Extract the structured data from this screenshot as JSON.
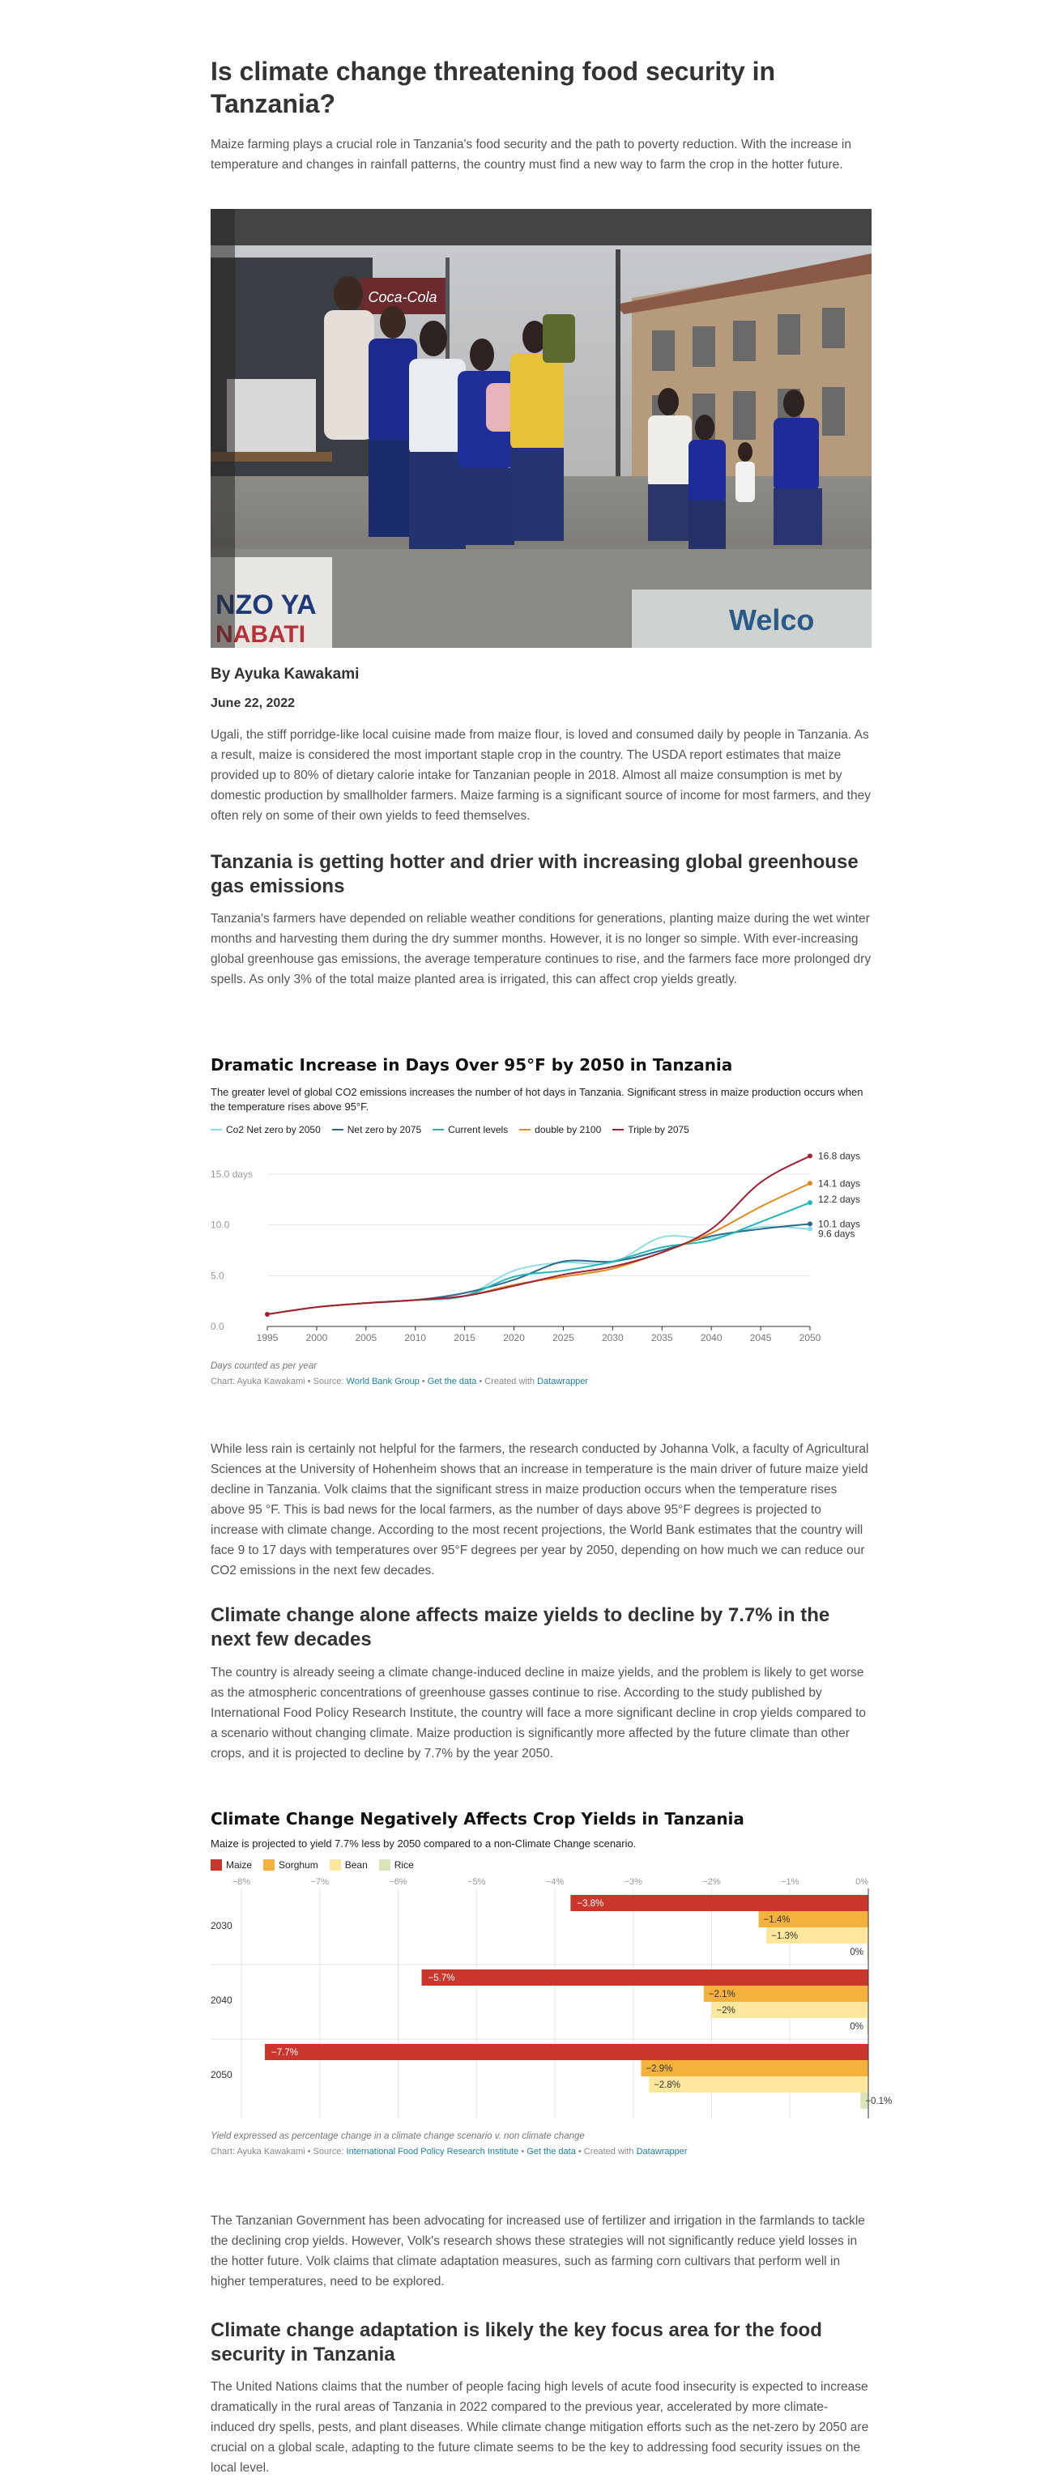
{
  "article": {
    "title": "Is climate change threatening food security in Tanzania?",
    "lede": "Maize farming plays a crucial role in Tanzania's food security and the path to poverty reduction. With the increase in temperature and changes in rainfall patterns, the country must find a new way to farm the crop in the hotter future.",
    "byline": "By Ayuka Kawakami",
    "date": "June 22, 2022",
    "p1": "Ugali, the stiff porridge-like local cuisine made from maize flour, is loved and consumed daily by people in Tanzania. As a result, maize is considered the most important staple crop in the country. The USDA report estimates that maize provided up to 80% of dietary calorie intake for Tanzanian people in 2018. Almost all maize consumption is met by domestic production by smallholder farmers. Maize farming is a significant source of income for most farmers, and they often rely on some of their own yields to feed themselves.",
    "h2a": "Tanzania is getting hotter and drier with increasing global greenhouse gas emissions",
    "p2": "Tanzania's farmers have depended on reliable weather conditions for generations, planting maize during the wet winter months and harvesting them during the dry summer months. However, it is no longer so simple. With ever-increasing global greenhouse gas emissions, the average temperature continues to rise, and the farmers face more prolonged dry spells. As only 3% of the total maize planted area is irrigated, this can affect crop yields greatly.",
    "p3": "While less rain is certainly not helpful for the farmers, the research conducted by Johanna Volk, a faculty of Agricultural Sciences at the University of Hohenheim shows that an increase in temperature is the main driver of future maize yield decline in Tanzania. Volk claims that the significant stress in maize production occurs when the temperature rises above 95 °F. This is bad news for the local farmers, as the number of days above 95°F degrees is projected to increase with climate change. According to the most recent projections, the World Bank estimates that the country will face 9 to 17 days with temperatures over 95°F degrees per year by 2050, depending on how much we can reduce our CO2 emissions in the next few decades.",
    "h2b": "Climate change alone affects maize yields to decline by 7.7% in the next few decades",
    "p4": "The country is already seeing a climate change-induced decline in maize yields, and the problem is likely to get worse as the atmospheric concentrations of greenhouse gasses continue to rise. According to the study published by International Food Policy Research Institute, the country will face a more significant decline in crop yields compared to a scenario without changing climate. Maize production is significantly more affected by the future climate than other crops, and it is projected to decline by 7.7% by the year 2050.",
    "p5": "The Tanzanian Government has been advocating for increased use of fertilizer and irrigation in the farmlands to tackle the declining crop yields. However, Volk's research shows these strategies will not significantly reduce yield losses in the hotter future. Volk claims that climate adaptation measures, such as farming corn cultivars that perform well in higher temperatures, need to be explored.",
    "h2c": "Climate change adaptation is likely the key focus area for the food security in Tanzania",
    "p6": "The United Nations claims that the number of people facing high levels of acute food insecurity is expected to increase dramatically in the rural areas of Tanzania in 2022 compared to the previous year, accelerated by more climate-induced dry spells, pests, and plant diseases. While climate change mitigation efforts such as the net-zero by 2050 are crucial on a global scale, adapting to the future climate seems to be the key to addressing food security issues on the local level."
  },
  "photo": {
    "sign_text": "Coca-Cola",
    "banner_left": "NZO YA",
    "banner_left2": "NABATI",
    "banner_right": "Welco"
  },
  "chart1": {
    "title": "Dramatic Increase in Days Over 95°F by 2050 in Tanzania",
    "description": "The greater level of global CO2 emissions increases the number of hot days in Tanzania. Significant stress in maize production occurs when the temperature rises above 95°F.",
    "note": "Days counted as per year",
    "credit_prefix": "Chart: Ayuka Kawakami • Source: ",
    "credit_source": "World Bank Group",
    "credit_sep": " • ",
    "credit_get": "Get the data",
    "credit_mid": " • Created with ",
    "credit_tool": "Datawrapper"
  },
  "chart2": {
    "title": "Climate Change Negatively Affects Crop Yields in Tanzania",
    "description": "Maize is projected to yield 7.7% less by 2050 compared to a non-Climate Change scenario.",
    "note": "Yield expressed as percentage change in a climate change scenario v. non climate change",
    "credit_prefix": "Chart: Ayuka Kawakami • Source: ",
    "credit_source": "International Food Policy Research Institute",
    "credit_sep": " • ",
    "credit_get": "Get the data",
    "credit_mid": " • Created with ",
    "credit_tool": "Datawrapper"
  },
  "chart_data": [
    {
      "type": "line",
      "title": "Dramatic Increase in Days Over 95°F by 2050 in Tanzania",
      "x": [
        1995,
        2000,
        2005,
        2010,
        2015,
        2020,
        2025,
        2030,
        2035,
        2040,
        2045,
        2050
      ],
      "xticks": [
        "1995",
        "2000",
        "2005",
        "2010",
        "2015",
        "2020",
        "2025",
        "2030",
        "2035",
        "2040",
        "2045",
        "2050"
      ],
      "yticks": [
        "0.0",
        "5.0",
        "10.0",
        "15.0 days"
      ],
      "ylim": [
        0,
        15
      ],
      "xlim": [
        1995,
        2050
      ],
      "legend_position": "top-left",
      "grid": true,
      "series": [
        {
          "name": "Co2 Net zero by 2050",
          "color": "#8fdde0",
          "end_label": "9.6 days",
          "values": [
            1.2,
            1.9,
            2.3,
            2.6,
            3.0,
            5.5,
            6.3,
            6.3,
            8.8,
            8.7,
            9.8,
            9.6
          ]
        },
        {
          "name": "Net zero by 2075",
          "color": "#2b6a8c",
          "end_label": "10.1 days",
          "values": [
            1.2,
            1.9,
            2.3,
            2.6,
            3.3,
            4.6,
            6.4,
            6.4,
            7.5,
            8.9,
            9.6,
            10.1
          ]
        },
        {
          "name": "Current levels",
          "color": "#22b6b9",
          "end_label": "12.2 days",
          "values": [
            1.2,
            1.9,
            2.3,
            2.6,
            3.0,
            4.9,
            5.5,
            6.4,
            7.8,
            8.5,
            10.3,
            12.2
          ]
        },
        {
          "name": "double by 2100",
          "color": "#e08a1c",
          "end_label": "14.1 days",
          "values": [
            1.2,
            1.9,
            2.3,
            2.6,
            3.0,
            4.1,
            4.9,
            5.7,
            7.3,
            9.2,
            11.8,
            14.1
          ]
        },
        {
          "name": "Triple by 2075",
          "color": "#a12232",
          "end_label": "16.8 days",
          "values": [
            1.2,
            1.9,
            2.3,
            2.6,
            3.0,
            4.0,
            5.1,
            5.9,
            7.3,
            9.6,
            14.2,
            16.8
          ]
        }
      ]
    },
    {
      "type": "bar",
      "title": "Climate Change Negatively Affects Crop Yields in Tanzania",
      "orientation": "horizontal",
      "categories": [
        "2030",
        "2040",
        "2050"
      ],
      "xticks": [
        "−8%",
        "−7%",
        "−6%",
        "−5%",
        "−4%",
        "−3%",
        "−2%",
        "−1%",
        "0%"
      ],
      "xlim": [
        -8,
        0
      ],
      "legend_position": "top-left",
      "series": [
        {
          "name": "Maize",
          "color": "#c9372c",
          "values": [
            -3.8,
            -5.7,
            -7.7
          ],
          "labels": [
            "−3.8%",
            "−5.7%",
            "−7.7%"
          ]
        },
        {
          "name": "Sorghum",
          "color": "#f3b13d",
          "values": [
            -1.4,
            -2.1,
            -2.9
          ],
          "labels": [
            "−1.4%",
            "−2.1%",
            "−2.9%"
          ]
        },
        {
          "name": "Bean",
          "color": "#fce79c",
          "values": [
            -1.3,
            -2.0,
            -2.8
          ],
          "labels": [
            "−1.3%",
            "−2%",
            "−2.8%"
          ]
        },
        {
          "name": "Rice",
          "color": "#d9e4b9",
          "values": [
            0,
            0,
            -0.1
          ],
          "labels": [
            "0%",
            "0%",
            "−0.1%"
          ]
        }
      ]
    }
  ]
}
